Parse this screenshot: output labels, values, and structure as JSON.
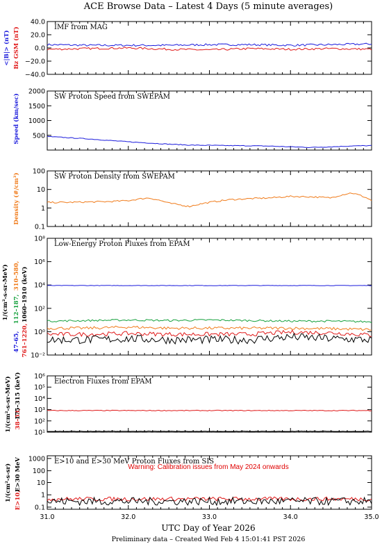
{
  "header": {
    "title": "ACE Browse Data – Latest 4 Days (5 minute averages)"
  },
  "xaxis": {
    "label": "UTC Day of Year 2026",
    "range": [
      31.0,
      35.0
    ],
    "ticks": [
      "31.0",
      "32.0",
      "33.0",
      "34.0",
      "35.0"
    ]
  },
  "footer": {
    "text": "Preliminary data – Created Wed Feb  4 15:01:41 PST 2026"
  },
  "colors": {
    "blue": "#1a1adc",
    "red": "#e01818",
    "orange": "#f07a18",
    "green": "#14a03c",
    "black": "#000000"
  },
  "panels": [
    {
      "id": "mag",
      "title": "IMF from MAG",
      "ylabels": [
        {
          "text": "<|B|> (nT)",
          "color": "blue"
        },
        {
          "text": "Bz GSM (nT)",
          "color": "red"
        }
      ],
      "yticks": [
        "40.0",
        "20.0",
        "0.0",
        "−20.0",
        "−40.0"
      ]
    },
    {
      "id": "speed",
      "title": "SW Proton Speed from SWEPAM",
      "ylabels": [
        {
          "text": "Speed (km/sec)",
          "color": "blue"
        }
      ],
      "yticks": [
        "2000",
        "1500",
        "1000",
        "500"
      ]
    },
    {
      "id": "density",
      "title": "SW Proton Density from SWEPAM",
      "ylabels": [
        {
          "text": "Density (#/cm³)",
          "color": "orange"
        }
      ],
      "yticks": [
        "100",
        "10",
        "1",
        "0.1"
      ]
    },
    {
      "id": "proton",
      "title": "Low-Energy Proton Fluxes from EPAM",
      "ylabels": [
        {
          "text": "1/(cm²-s-sr-MeV)",
          "color": "black"
        },
        {
          "text": "47–65,",
          "color": "blue"
        },
        {
          "text": "112–187,",
          "color": "green"
        },
        {
          "text": "310–580,",
          "color": "orange"
        },
        {
          "text": "761–1220,",
          "color": "red"
        },
        {
          "text": "1060–1910 (keV)",
          "color": "black"
        }
      ],
      "yticks": [
        "10⁸",
        "10⁶",
        "10⁴",
        "10²",
        "10⁰",
        "10⁻²"
      ]
    },
    {
      "id": "electron",
      "title": "Electron Fluxes from EPAM",
      "ylabels": [
        {
          "text": "1/(cm²-s-sr-MeV)",
          "color": "black"
        },
        {
          "text": "38–53,",
          "color": "red"
        },
        {
          "text": "175–315 (keV)",
          "color": "black"
        }
      ],
      "yticks": [
        "10⁶",
        "10⁵",
        "10⁴",
        "10³",
        "10²",
        "10¹"
      ]
    },
    {
      "id": "sis",
      "title": "E>10 and E>30 MeV Proton Fluxes from SIS",
      "ylabels": [
        {
          "text": "1/(cm²-s-sr)",
          "color": "black"
        },
        {
          "text": "E>10,",
          "color": "red"
        },
        {
          "text": "E>30 MeV",
          "color": "black"
        }
      ],
      "yticks": [
        "1000",
        "100",
        "10",
        "1",
        "0.1"
      ],
      "warning": "Warning: Calibration issues from May 2024 onwards"
    }
  ],
  "chart_data": [
    {
      "type": "line",
      "title": "IMF from MAG",
      "ylim": [
        -40,
        40
      ],
      "x": [
        31.0,
        31.5,
        32.0,
        32.5,
        33.0,
        33.5,
        34.0,
        34.5,
        35.0
      ],
      "series": [
        {
          "name": "<|B|> (nT)",
          "color": "blue",
          "values": [
            5,
            4,
            4,
            4,
            5,
            5,
            4,
            5,
            6
          ]
        },
        {
          "name": "Bz GSM (nT)",
          "color": "red",
          "values": [
            -2,
            -1,
            0,
            -2,
            -3,
            -1,
            -2,
            -1,
            -2
          ]
        }
      ]
    },
    {
      "type": "line",
      "title": "SW Proton Speed from SWEPAM",
      "ylim": [
        0,
        2000
      ],
      "x": [
        31.0,
        31.25,
        31.5,
        31.75,
        32.0,
        32.25,
        32.5,
        32.75,
        33.0,
        33.25,
        33.5,
        33.75,
        34.0,
        34.25,
        34.5,
        34.75,
        35.0
      ],
      "series": [
        {
          "name": "Speed (km/sec)",
          "color": "blue",
          "values": [
            460,
            420,
            380,
            330,
            280,
            240,
            200,
            170,
            160,
            150,
            145,
            135,
            110,
            90,
            110,
            140,
            150
          ]
        }
      ]
    },
    {
      "type": "line",
      "title": "SW Proton Density from SWEPAM",
      "ylim": [
        0.1,
        100
      ],
      "log": true,
      "x": [
        31.0,
        31.25,
        31.5,
        31.75,
        32.0,
        32.25,
        32.5,
        32.75,
        33.0,
        33.25,
        33.5,
        33.75,
        34.0,
        34.25,
        34.5,
        34.75,
        35.0
      ],
      "series": [
        {
          "name": "Density (#/cm³)",
          "color": "orange",
          "values": [
            2.0,
            2.0,
            2.1,
            2.2,
            2.5,
            3.5,
            1.8,
            1.2,
            2.0,
            2.8,
            3.2,
            3.5,
            4.2,
            4.0,
            3.5,
            6.5,
            2.5
          ]
        }
      ]
    },
    {
      "type": "line",
      "title": "Low-Energy Proton Fluxes from EPAM",
      "ylim": [
        0.01,
        100000000
      ],
      "log": true,
      "x": [
        31.0,
        31.5,
        32.0,
        32.5,
        33.0,
        33.5,
        34.0,
        34.5,
        35.0
      ],
      "series": [
        {
          "name": "47–65 keV",
          "color": "blue",
          "values": [
            9000,
            9000,
            9000,
            9000,
            9000,
            9000,
            9000,
            9000,
            9000
          ]
        },
        {
          "name": "112–187 keV",
          "color": "green",
          "values": [
            8,
            9,
            10,
            9,
            10,
            9,
            8,
            8,
            7
          ]
        },
        {
          "name": "310–580 keV",
          "color": "orange",
          "values": [
            2,
            2,
            2.5,
            2,
            2,
            2,
            2,
            1.8,
            1.5
          ]
        },
        {
          "name": "761–1220 keV",
          "color": "red",
          "values": [
            0.6,
            0.6,
            0.7,
            0.6,
            0.6,
            0.6,
            0.9,
            0.8,
            0.5
          ]
        },
        {
          "name": "1060–1910 keV",
          "color": "black",
          "values": [
            0.2,
            0.2,
            0.25,
            0.2,
            0.2,
            0.2,
            0.35,
            0.25,
            0.2
          ]
        }
      ]
    },
    {
      "type": "line",
      "title": "Electron Fluxes from EPAM",
      "ylim": [
        10,
        10000000
      ],
      "log": true,
      "x": [
        31.0,
        32.0,
        33.0,
        34.0,
        35.0
      ],
      "series": [
        {
          "name": "38–53 keV",
          "color": "red",
          "values": [
            2000,
            2000,
            2000,
            2000,
            2000
          ]
        },
        {
          "name": "175–315 keV",
          "color": "black",
          "values": [
            12,
            12,
            12,
            12,
            12
          ]
        }
      ]
    },
    {
      "type": "line",
      "title": "E>10 and E>30 MeV Proton Fluxes from SIS",
      "ylim": [
        0.1,
        5000
      ],
      "log": true,
      "x": [
        31.0,
        32.0,
        33.0,
        34.0,
        35.0
      ],
      "series": [
        {
          "name": "E>10",
          "color": "red",
          "values": [
            0.8,
            0.8,
            0.8,
            0.8,
            0.8
          ]
        },
        {
          "name": "E>30 MeV",
          "color": "black",
          "values": [
            0.5,
            0.5,
            0.5,
            0.5,
            0.5
          ]
        }
      ]
    }
  ]
}
